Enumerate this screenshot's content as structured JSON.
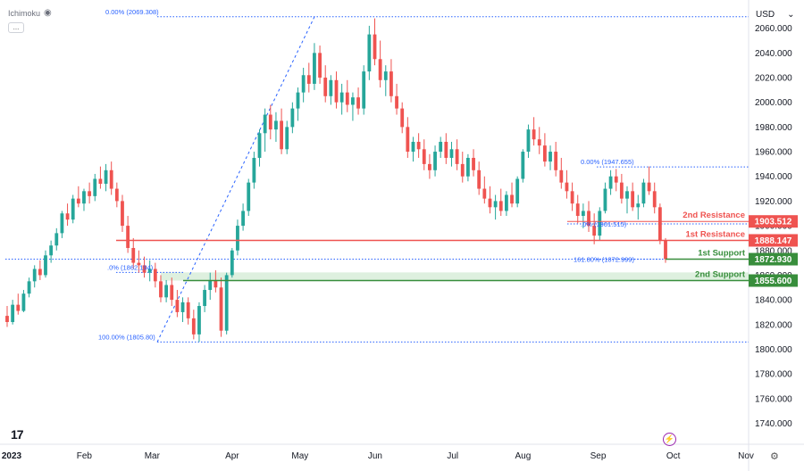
{
  "indicator": {
    "name": "Ichimoku",
    "visibility_icon": "eye-icon",
    "more_icon": "..."
  },
  "currency": {
    "label": "USD",
    "dropdown_icon": "⌄"
  },
  "watermark": {
    "logo_text": "17"
  },
  "colors": {
    "up": "#26a69a",
    "down": "#ef5350",
    "resistance": "#ef5350",
    "support": "#388e3c",
    "fib": "#2962ff",
    "support_zone": "#c8e6c9",
    "axis_text": "#131722"
  },
  "chart_data": {
    "type": "candlestick",
    "title": "",
    "xlabel": "",
    "ylabel": "",
    "ylim": [
      1723,
      2080
    ],
    "y_ticks": [
      "2060.000",
      "2040.000",
      "2020.000",
      "2000.000",
      "1980.000",
      "1960.000",
      "1940.000",
      "1920.000",
      "1900.000",
      "1880.000",
      "1860.000",
      "1840.000",
      "1820.000",
      "1800.000",
      "1780.000",
      "1760.000",
      "1740.000"
    ],
    "x_ticks": [
      {
        "label": "2023",
        "date": "2023-01-02"
      },
      {
        "label": "Feb",
        "date": "2023-02-01"
      },
      {
        "label": "Mar",
        "date": "2023-03-01"
      },
      {
        "label": "Apr",
        "date": "2023-04-03"
      },
      {
        "label": "May",
        "date": "2023-05-01"
      },
      {
        "label": "Jun",
        "date": "2023-06-01"
      },
      {
        "label": "Jul",
        "date": "2023-07-03"
      },
      {
        "label": "Aug",
        "date": "2023-08-01"
      },
      {
        "label": "Sep",
        "date": "2023-09-01"
      },
      {
        "label": "Oct",
        "date": "2023-10-02"
      },
      {
        "label": "Nov",
        "date": "2023-11-01"
      }
    ],
    "candles": [
      [
        1827,
        1835,
        1818,
        1822
      ],
      [
        1822,
        1840,
        1820,
        1836
      ],
      [
        1836,
        1845,
        1828,
        1831
      ],
      [
        1831,
        1848,
        1830,
        1845
      ],
      [
        1845,
        1858,
        1842,
        1855
      ],
      [
        1855,
        1868,
        1850,
        1865
      ],
      [
        1865,
        1872,
        1856,
        1860
      ],
      [
        1860,
        1880,
        1858,
        1876
      ],
      [
        1876,
        1888,
        1870,
        1884
      ],
      [
        1884,
        1898,
        1880,
        1894
      ],
      [
        1894,
        1912,
        1890,
        1910
      ],
      [
        1910,
        1918,
        1900,
        1905
      ],
      [
        1905,
        1925,
        1902,
        1922
      ],
      [
        1922,
        1932,
        1915,
        1918
      ],
      [
        1918,
        1930,
        1912,
        1928
      ],
      [
        1928,
        1935,
        1918,
        1924
      ],
      [
        1924,
        1942,
        1920,
        1938
      ],
      [
        1938,
        1948,
        1930,
        1934
      ],
      [
        1934,
        1950,
        1928,
        1945
      ],
      [
        1945,
        1952,
        1925,
        1930
      ],
      [
        1930,
        1935,
        1915,
        1920
      ],
      [
        1920,
        1925,
        1895,
        1900
      ],
      [
        1900,
        1908,
        1878,
        1882
      ],
      [
        1882,
        1890,
        1865,
        1870
      ],
      [
        1870,
        1880,
        1862,
        1868
      ],
      [
        1868,
        1875,
        1858,
        1862
      ],
      [
        1862,
        1872,
        1855,
        1865
      ],
      [
        1865,
        1870,
        1850,
        1855
      ],
      [
        1855,
        1860,
        1838,
        1842
      ],
      [
        1842,
        1856,
        1838,
        1852
      ],
      [
        1852,
        1858,
        1835,
        1840
      ],
      [
        1840,
        1848,
        1826,
        1830
      ],
      [
        1830,
        1842,
        1822,
        1838
      ],
      [
        1838,
        1842,
        1820,
        1825
      ],
      [
        1825,
        1832,
        1808,
        1812
      ],
      [
        1812,
        1838,
        1806,
        1835
      ],
      [
        1835,
        1852,
        1830,
        1848
      ],
      [
        1848,
        1862,
        1840,
        1856
      ],
      [
        1856,
        1864,
        1846,
        1850
      ],
      [
        1850,
        1858,
        1810,
        1815
      ],
      [
        1815,
        1862,
        1812,
        1860
      ],
      [
        1860,
        1882,
        1858,
        1880
      ],
      [
        1880,
        1905,
        1876,
        1900
      ],
      [
        1900,
        1918,
        1896,
        1912
      ],
      [
        1912,
        1938,
        1908,
        1935
      ],
      [
        1935,
        1960,
        1930,
        1955
      ],
      [
        1955,
        1978,
        1948,
        1975
      ],
      [
        1975,
        1995,
        1960,
        1990
      ],
      [
        1990,
        1998,
        1970,
        1978
      ],
      [
        1978,
        1992,
        1968,
        1985
      ],
      [
        1985,
        1995,
        1958,
        1962
      ],
      [
        1962,
        1985,
        1958,
        1980
      ],
      [
        1980,
        2000,
        1975,
        1995
      ],
      [
        1995,
        2012,
        1985,
        2008
      ],
      [
        2008,
        2028,
        2000,
        2022
      ],
      [
        2022,
        2032,
        2008,
        2015
      ],
      [
        2015,
        2048,
        2010,
        2040
      ],
      [
        2040,
        2046,
        2015,
        2020
      ],
      [
        2020,
        2030,
        2000,
        2005
      ],
      [
        2005,
        2022,
        1998,
        2018
      ],
      [
        2018,
        2025,
        1995,
        2000
      ],
      [
        2000,
        2015,
        1990,
        2008
      ],
      [
        2008,
        2018,
        1992,
        1998
      ],
      [
        1998,
        2008,
        1985,
        2004
      ],
      [
        2004,
        2012,
        1990,
        1995
      ],
      [
        1995,
        2030,
        1990,
        2025
      ],
      [
        2025,
        2062,
        2018,
        2055
      ],
      [
        2055,
        2068,
        2030,
        2035
      ],
      [
        2035,
        2050,
        2012,
        2018
      ],
      [
        2018,
        2030,
        2005,
        2025
      ],
      [
        2025,
        2035,
        2000,
        2005
      ],
      [
        2005,
        2015,
        1990,
        1995
      ],
      [
        1995,
        2000,
        1975,
        1980
      ],
      [
        1980,
        1988,
        1955,
        1960
      ],
      [
        1960,
        1972,
        1952,
        1968
      ],
      [
        1968,
        1975,
        1955,
        1962
      ],
      [
        1962,
        1970,
        1945,
        1950
      ],
      [
        1950,
        1958,
        1938,
        1945
      ],
      [
        1945,
        1965,
        1940,
        1960
      ],
      [
        1960,
        1972,
        1955,
        1968
      ],
      [
        1968,
        1975,
        1950,
        1955
      ],
      [
        1955,
        1968,
        1948,
        1962
      ],
      [
        1962,
        1970,
        1945,
        1950
      ],
      [
        1950,
        1960,
        1935,
        1940
      ],
      [
        1940,
        1958,
        1936,
        1955
      ],
      [
        1955,
        1962,
        1940,
        1945
      ],
      [
        1945,
        1952,
        1925,
        1930
      ],
      [
        1930,
        1940,
        1918,
        1922
      ],
      [
        1922,
        1932,
        1910,
        1915
      ],
      [
        1915,
        1925,
        1905,
        1920
      ],
      [
        1920,
        1930,
        1908,
        1912
      ],
      [
        1912,
        1928,
        1908,
        1925
      ],
      [
        1925,
        1935,
        1915,
        1918
      ],
      [
        1918,
        1940,
        1915,
        1938
      ],
      [
        1938,
        1962,
        1935,
        1960
      ],
      [
        1960,
        1982,
        1955,
        1978
      ],
      [
        1978,
        1988,
        1965,
        1970
      ],
      [
        1970,
        1980,
        1958,
        1965
      ],
      [
        1965,
        1975,
        1948,
        1952
      ],
      [
        1952,
        1965,
        1945,
        1960
      ],
      [
        1960,
        1968,
        1940,
        1945
      ],
      [
        1945,
        1955,
        1930,
        1935
      ],
      [
        1935,
        1945,
        1922,
        1928
      ],
      [
        1928,
        1935,
        1912,
        1918
      ],
      [
        1918,
        1925,
        1902,
        1908
      ],
      [
        1908,
        1918,
        1898,
        1912
      ],
      [
        1912,
        1920,
        1895,
        1900
      ],
      [
        1900,
        1910,
        1885,
        1892
      ],
      [
        1892,
        1915,
        1888,
        1912
      ],
      [
        1912,
        1935,
        1910,
        1930
      ],
      [
        1930,
        1945,
        1925,
        1940
      ],
      [
        1940,
        1946,
        1928,
        1935
      ],
      [
        1935,
        1942,
        1918,
        1922
      ],
      [
        1922,
        1932,
        1910,
        1928
      ],
      [
        1928,
        1935,
        1912,
        1915
      ],
      [
        1915,
        1925,
        1905,
        1918
      ],
      [
        1918,
        1938,
        1915,
        1935
      ],
      [
        1935,
        1948,
        1925,
        1928
      ],
      [
        1928,
        1935,
        1910,
        1915
      ],
      [
        1915,
        1918,
        1885,
        1888
      ],
      [
        1888,
        1890,
        1870,
        1873
      ]
    ],
    "levels": [
      {
        "name": "2nd Resistance",
        "price": 1903.512,
        "price_label": "1903.512",
        "kind": "resistance"
      },
      {
        "name": "1st Resistance",
        "price": 1888.147,
        "price_label": "1888.147",
        "kind": "resistance"
      },
      {
        "name": "1st Support",
        "price": 1872.93,
        "price_label": "1872.930",
        "kind": "support"
      },
      {
        "name": "2nd Support",
        "price": 1855.6,
        "price_label": "1855.600",
        "kind": "support"
      }
    ],
    "fib_labels": [
      {
        "text": "0.00% (2069.308)",
        "price": 2069.308
      },
      {
        "text": "100.00% (1805.80)",
        "price": 1805.8
      },
      {
        "text": ".0% (1862.194)",
        "price": 1862.194
      },
      {
        "text": "0.00% (1947.655)",
        "price": 1947.655
      },
      {
        "text": ".0% (1901.515)",
        "price": 1901.515
      },
      {
        "text": "161.80% (1872.999)",
        "price": 1872.999
      }
    ]
  }
}
